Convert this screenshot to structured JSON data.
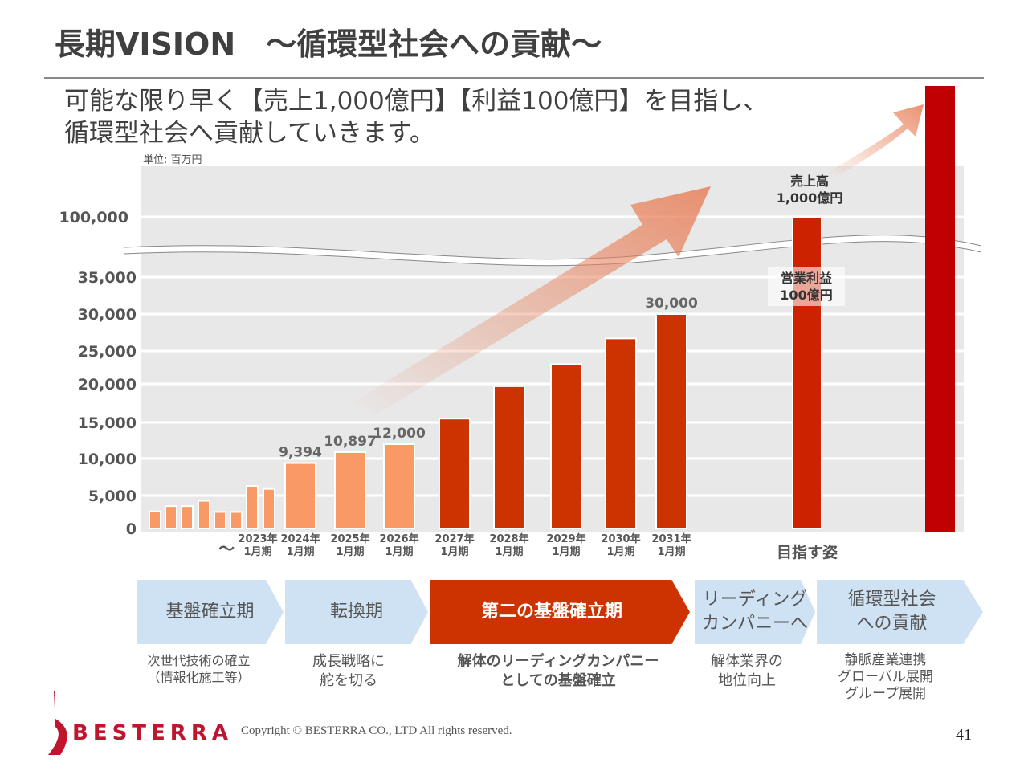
{
  "title": "長期VISION　～循環型社会への貢献～",
  "subtitle": [
    "可能な限り早く【売上1,000億円】【利益100億円】を目指し、",
    "循環型社会へ貢献していきます。"
  ],
  "chart_data": {
    "type": "bar",
    "unit_label": "単位: 百万円",
    "y_ticks": [
      "0",
      "5,000",
      "10,000",
      "15,000",
      "20,000",
      "25,000",
      "30,000",
      "35,000",
      "100,000"
    ],
    "y_tick_values": [
      0,
      5000,
      10000,
      15000,
      20000,
      25000,
      30000,
      35000,
      100000
    ],
    "axis_break": "between 35,000 and 100,000",
    "bars": [
      {
        "category": "",
        "value": 2600,
        "kind": "actual"
      },
      {
        "category": "",
        "value": 3400,
        "kind": "actual"
      },
      {
        "category": "",
        "value": 3400,
        "kind": "actual"
      },
      {
        "category": "",
        "value": 4200,
        "kind": "actual"
      },
      {
        "category": "",
        "value": 2500,
        "kind": "actual"
      },
      {
        "category": "",
        "value": 2500,
        "kind": "actual"
      },
      {
        "category": "",
        "value": 6300,
        "kind": "actual"
      },
      {
        "category": "2023年1月期",
        "value": 5900,
        "kind": "actual"
      },
      {
        "category": "2024年1月期",
        "value": 9394,
        "label": "9,394",
        "kind": "plan"
      },
      {
        "category": "2025年1月期",
        "value": 10897,
        "label": "10,897",
        "kind": "plan"
      },
      {
        "category": "2026年1月期",
        "value": 12000,
        "label": "12,000",
        "kind": "plan"
      },
      {
        "category": "2027年1月期",
        "value": 15500,
        "kind": "target"
      },
      {
        "category": "2028年1月期",
        "value": 19700,
        "kind": "target"
      },
      {
        "category": "2029年1月期",
        "value": 23000,
        "kind": "target"
      },
      {
        "category": "2030年1月期",
        "value": 26700,
        "kind": "target"
      },
      {
        "category": "2031年1月期",
        "value": 30000,
        "label": "30,000",
        "kind": "target"
      },
      {
        "category": "目指す姿",
        "value": 100000,
        "kind": "goal"
      }
    ],
    "tilde": "～",
    "goal_sales_label": [
      "売上高",
      "1,000億円"
    ],
    "goal_profit_label": [
      "営業利益",
      "100億円"
    ],
    "colors": {
      "actual": "#f99a66",
      "plan": "#f99a66",
      "target": "#cc3300",
      "goal": "#cc2200",
      "vision": "#c00000",
      "bg": "#e8e8e8"
    }
  },
  "phases": [
    {
      "label": "基盤確立期",
      "desc": "次世代技術の確立\n（情報化施工等）"
    },
    {
      "label": "転換期",
      "desc": "成長戦略に\n舵を切る"
    },
    {
      "label": "第二の基盤確立期",
      "desc": "解体のリーディングカンパニー\nとしての基盤確立"
    },
    {
      "label": "リーディング\nカンパニーへ",
      "desc": "解体業界の\n地位向上"
    },
    {
      "label": "循環型社会\nへの貢献",
      "desc": "静脈産業連携\nグローバル展開\nグループ展開"
    }
  ],
  "footer": {
    "logo": "BESTERRA",
    "copyright": "Copyright © BESTERRA CO., LTD All rights reserved.",
    "page": "41"
  }
}
